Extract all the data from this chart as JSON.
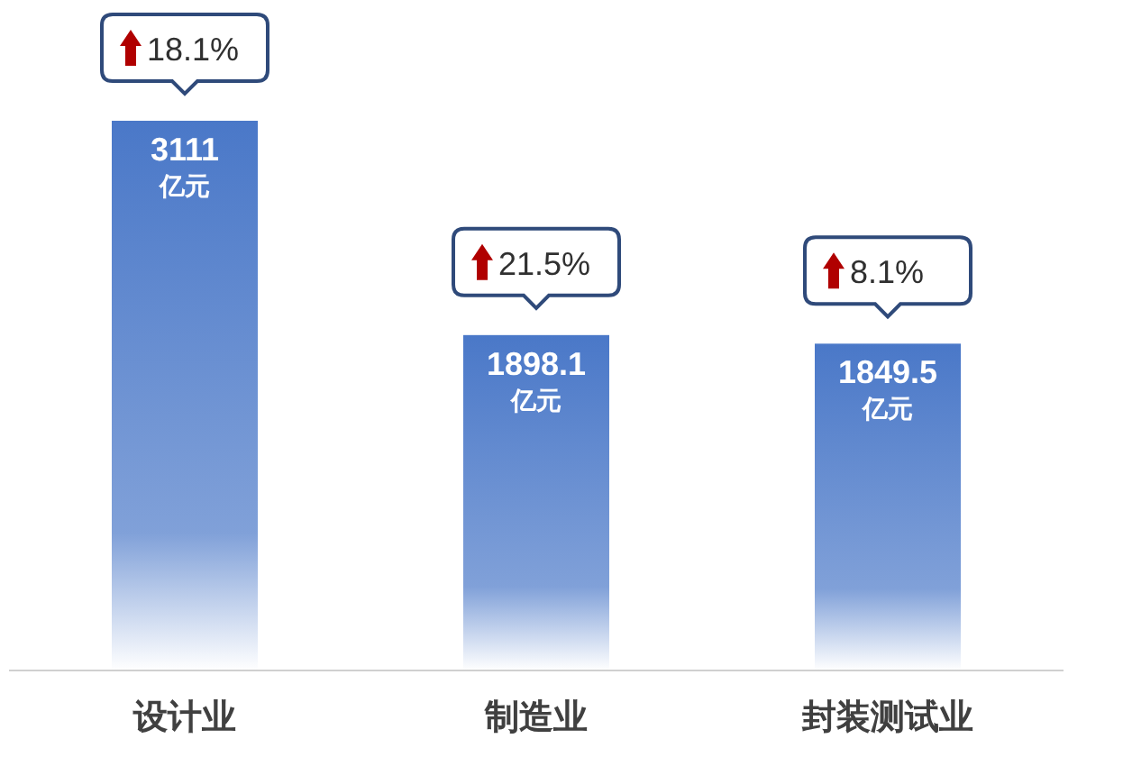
{
  "chart_data": {
    "type": "bar",
    "categories": [
      "设计业",
      "制造业",
      "封装测试业"
    ],
    "series": [
      {
        "color": "#4a78c8",
        "values": [
          3111,
          1898.1,
          1849.5
        ],
        "value_labels": [
          "3111\n亿元",
          "1898.1\n亿元",
          "1849.5\n亿元"
        ]
      }
    ],
    "annotations": [
      {
        "text": "18.1%",
        "x": "设计业",
        "y": 3111
      },
      {
        "text": "21.5%",
        "x": "制造业",
        "y": 1898.1
      },
      {
        "text": "8.1%",
        "x": "封装测试业",
        "y": 1849.5
      }
    ]
  }
}
